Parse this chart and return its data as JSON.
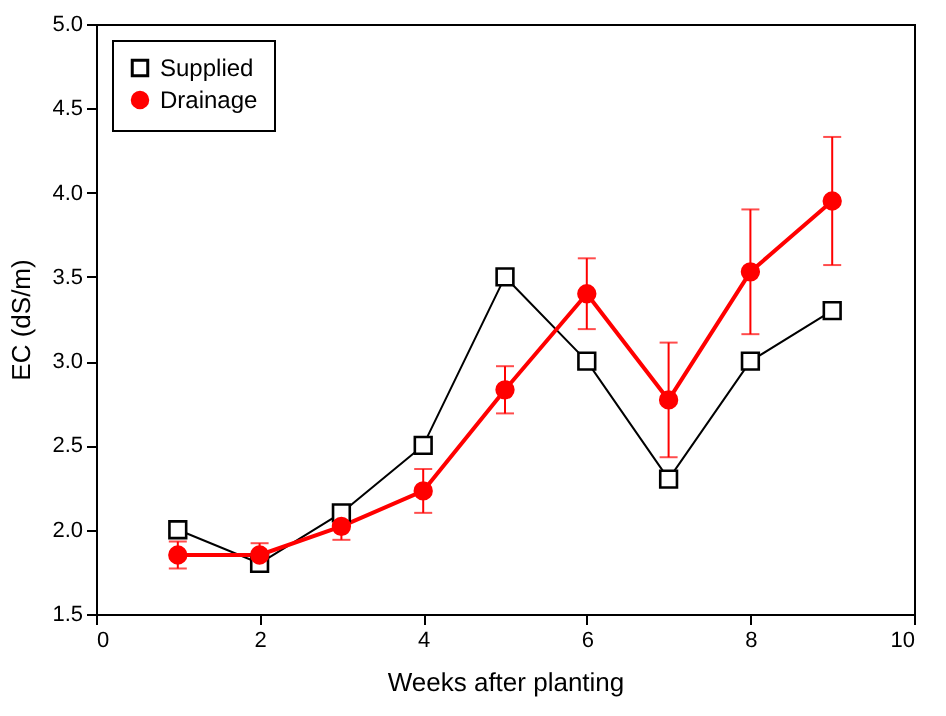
{
  "chart_data": {
    "type": "line",
    "xlabel": "Weeks after planting",
    "ylabel": "EC (dS/m)",
    "xlim": [
      0,
      10
    ],
    "xticks": [
      0,
      2,
      4,
      6,
      8,
      10
    ],
    "ylim": [
      1.5,
      5.0
    ],
    "yticks": [
      {
        "value": 1.5,
        "label": "1.5"
      },
      {
        "value": 2,
        "label": "2.0"
      },
      {
        "value": 2.5,
        "label": "2.5"
      },
      {
        "value": 3,
        "label": "3.0"
      },
      {
        "value": 3.5,
        "label": "3.5"
      },
      {
        "value": 4,
        "label": "4.0"
      },
      {
        "value": 4.5,
        "label": "4.5"
      },
      {
        "value": 5,
        "label": "5.0"
      }
    ],
    "x": [
      1,
      2,
      3,
      4,
      5,
      6,
      7,
      8,
      9
    ],
    "series": [
      {
        "name": "Supplied",
        "color": "#000000",
        "marker": "square",
        "values": [
          2.0,
          1.8,
          2.1,
          2.5,
          3.5,
          3.0,
          2.3,
          3.0,
          3.3
        ]
      },
      {
        "name": "Drainage",
        "color": "#ff0000",
        "marker": "circle",
        "values": [
          1.85,
          1.85,
          2.02,
          2.23,
          2.83,
          3.4,
          2.77,
          3.53,
          3.95
        ],
        "errors": [
          0.08,
          0.07,
          0.08,
          0.13,
          0.14,
          0.21,
          0.34,
          0.37,
          0.38
        ]
      }
    ],
    "grid": false,
    "legend": "top left"
  }
}
